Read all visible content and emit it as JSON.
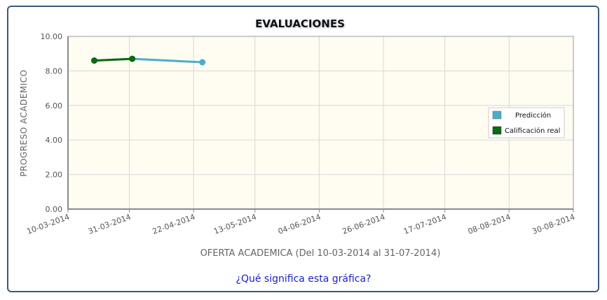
{
  "chart_data": {
    "type": "line",
    "title": "EVALUACIONES",
    "xlabel": "OFERTA ACADEMICA (Del 10-03-2014 al 31-07-2014)",
    "ylabel": "PROGRESO ACADEMICO",
    "ylim": [
      0,
      10
    ],
    "yticks": [
      "0.00",
      "2.00",
      "4.00",
      "6.00",
      "8.00",
      "10.00"
    ],
    "xticks": [
      "10-03-2014",
      "31-03-2014",
      "22-04-2014",
      "13-05-2014",
      "04-06-2014",
      "26-06-2014",
      "17-07-2014",
      "08-08-2014",
      "30-08-2014"
    ],
    "xlim": [
      "2014-03-10",
      "2014-08-30"
    ],
    "grid": true,
    "legend_position": "right",
    "series": [
      {
        "name": "Predicción",
        "color": "#4aaecb",
        "points": [
          {
            "x": "2014-03-19",
            "y": 8.6
          },
          {
            "x": "2014-04-01",
            "y": 8.7
          },
          {
            "x": "2014-04-25",
            "y": 8.5
          }
        ]
      },
      {
        "name": "Calificación real",
        "color": "#0b6b10",
        "points": [
          {
            "x": "2014-03-19",
            "y": 8.6
          },
          {
            "x": "2014-04-01",
            "y": 8.7
          }
        ]
      }
    ]
  },
  "help_link": "¿Qué significa esta gráfica?"
}
